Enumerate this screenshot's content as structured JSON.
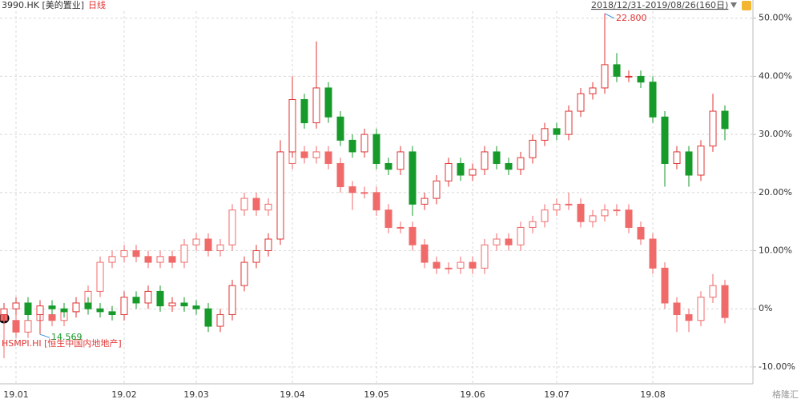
{
  "chart_data": {
    "type": "candlestick",
    "symbol": "3990.HK [美的置业]",
    "period": "日线",
    "range": "2018/12/31-2019/08/26(160日)",
    "compare_label": "HSMPI.HI [恒生中国内地地产]",
    "watermark": "格隆汇",
    "annotations": [
      "22.800",
      "14.569"
    ],
    "categories": [
      null,
      "19.01",
      null,
      null,
      null,
      null,
      null,
      null,
      null,
      null,
      "19.02",
      null,
      null,
      null,
      null,
      null,
      "19.03",
      null,
      null,
      null,
      null,
      null,
      null,
      null,
      "19.04",
      null,
      null,
      null,
      null,
      null,
      null,
      "19.05",
      null,
      null,
      null,
      null,
      null,
      null,
      null,
      "19.06",
      null,
      null,
      null,
      null,
      null,
      null,
      "19.07",
      null,
      null,
      null,
      null,
      null,
      null,
      null,
      "19.08",
      null,
      null,
      null,
      null,
      null,
      null
    ],
    "ylim": [
      -12.9,
      51.2
    ],
    "yticks": [
      {
        "value": 50,
        "label": "50.00%"
      },
      {
        "value": 40,
        "label": "40.00%"
      },
      {
        "value": 30,
        "label": "30.00%"
      },
      {
        "value": 20,
        "label": "20.00%"
      },
      {
        "value": 10,
        "label": "10.00%"
      },
      {
        "value": 0,
        "label": "0%"
      },
      {
        "value": -10,
        "label": "-10.00%"
      }
    ],
    "grid": true,
    "series": [
      {
        "name": "HSMPI.HI",
        "up_color": "#f06a6a",
        "down_color": "#f06a6a",
        "opens": [
          -1,
          -2,
          -4,
          -2,
          -1,
          -2,
          -0.5,
          1,
          3,
          8,
          9,
          10,
          9,
          8,
          9,
          8,
          11,
          12,
          10,
          11,
          17,
          19,
          17,
          18,
          25,
          27,
          26,
          27,
          25,
          21,
          20,
          20,
          17,
          14,
          14,
          11,
          8,
          7,
          7,
          8,
          7,
          11,
          12,
          11,
          14,
          15,
          17,
          18,
          18,
          15,
          16,
          17,
          17,
          14,
          12,
          7,
          1,
          -1,
          -2,
          2,
          4
        ],
        "closes": [
          -2,
          -4,
          -2,
          -1,
          -2,
          -0.5,
          1,
          3,
          8,
          9,
          10,
          9,
          8,
          9,
          8,
          11,
          12,
          10,
          11,
          17,
          19,
          17,
          18,
          25,
          27,
          26,
          27,
          25,
          21,
          20,
          20,
          17,
          14,
          14,
          11,
          8,
          7,
          7,
          8,
          7,
          11,
          12,
          11,
          14,
          15,
          17,
          18,
          18,
          15,
          16,
          17,
          17,
          14,
          12,
          7,
          1,
          -1,
          -2,
          2,
          4,
          -1.5
        ],
        "highs": [
          0,
          -1,
          -1,
          0,
          0,
          0.5,
          2,
          4,
          9,
          10,
          11,
          11,
          10,
          10,
          10,
          12,
          13,
          13,
          12,
          18,
          20,
          20,
          19,
          26,
          28,
          28,
          28,
          28,
          26,
          22,
          21,
          21,
          18,
          15,
          15,
          12,
          9,
          8,
          9,
          9,
          12,
          13,
          13,
          15,
          16,
          18,
          19,
          20,
          19,
          17,
          18,
          18,
          18,
          15,
          13,
          8,
          2,
          0,
          3,
          6,
          5
        ],
        "lows": [
          -8.5,
          -5,
          -5,
          -3,
          -3,
          -3,
          -1.5,
          0,
          2,
          7,
          8,
          8,
          7,
          7,
          7,
          7,
          10,
          9,
          9,
          10,
          16,
          16,
          16,
          17,
          24,
          25,
          25,
          24,
          20,
          17,
          19,
          16,
          13,
          13,
          10,
          7,
          6,
          6,
          6,
          6,
          6,
          10,
          10,
          10,
          13,
          14,
          16,
          17,
          14,
          14,
          15,
          16,
          13,
          11,
          6,
          0,
          -4,
          -4,
          -3,
          1,
          -2.5
        ]
      },
      {
        "name": "3990.HK",
        "up_color": "#e03434",
        "down_color": "#169a2a",
        "opens": [
          -1,
          0,
          1,
          -1,
          0.5,
          0,
          -0.5,
          1,
          0,
          -0.5,
          -1,
          2,
          1,
          3,
          0.5,
          1,
          0.5,
          0,
          -3,
          -1,
          4,
          8,
          10,
          12,
          27,
          36,
          32,
          38,
          33,
          29,
          27,
          30,
          25,
          24,
          27,
          18,
          19,
          22,
          25,
          23,
          24,
          27,
          25,
          24,
          26,
          29,
          31,
          30,
          34,
          37,
          38,
          42,
          40,
          40,
          39,
          33,
          25,
          27,
          23,
          28,
          34
        ],
        "closes": [
          0,
          1,
          -1,
          0.5,
          0,
          -0.5,
          1,
          0,
          -0.5,
          -1,
          2,
          1,
          3,
          0.5,
          1,
          0.5,
          0,
          -3,
          -1,
          4,
          8,
          10,
          12,
          27,
          36,
          32,
          38,
          33,
          29,
          27,
          30,
          25,
          24,
          27,
          18,
          19,
          22,
          25,
          23,
          24,
          27,
          25,
          24,
          26,
          29,
          31,
          30,
          34,
          37,
          38,
          42,
          40,
          40,
          39,
          33,
          25,
          27,
          23,
          28,
          34,
          31
        ],
        "highs": [
          1,
          2,
          2,
          1.5,
          1.5,
          1,
          2,
          2,
          1,
          0.5,
          3,
          3,
          4,
          4,
          2,
          2,
          1.5,
          1,
          0,
          5,
          9,
          11,
          13,
          29,
          40,
          37,
          46,
          39,
          34,
          30,
          31,
          31,
          26,
          28,
          28,
          20,
          23,
          26,
          26,
          25,
          28,
          28,
          26,
          27,
          30,
          32,
          32,
          35,
          38,
          39,
          50.8,
          44,
          41,
          41,
          40,
          34,
          28,
          28,
          29,
          37,
          35
        ],
        "lows": [
          -2,
          -1,
          -2,
          -4.4,
          -1,
          -1.5,
          -1.5,
          -1,
          -1.5,
          -2,
          -2,
          0,
          0,
          -0.5,
          -0.5,
          -0.5,
          -1,
          -4,
          -4,
          -2,
          3,
          7,
          9,
          11,
          26,
          31,
          31,
          32,
          28,
          26,
          26,
          24,
          23,
          23,
          16,
          17,
          18,
          21,
          22,
          22,
          23,
          24,
          23,
          23,
          25,
          28,
          29,
          29,
          33,
          36,
          37,
          39,
          39,
          38,
          32,
          21,
          24,
          21,
          22,
          27,
          29
        ]
      }
    ]
  }
}
